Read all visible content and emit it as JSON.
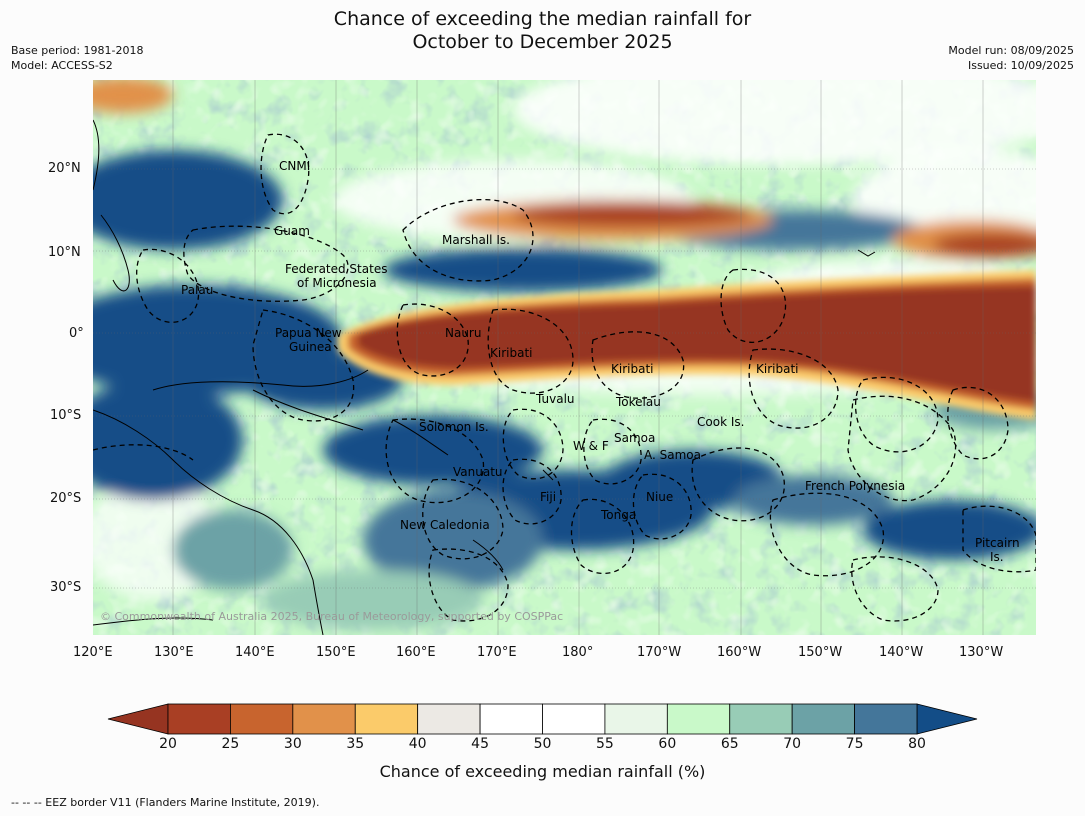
{
  "title_line1": "Chance of exceeding the median rainfall for",
  "title_line2": "October to December 2025",
  "meta_left": [
    "Base period: 1981-2018",
    "Model: ACCESS-S2"
  ],
  "meta_right": [
    "Model run: 08/09/2025",
    "Issued: 10/09/2025"
  ],
  "lon_labels": [
    "120°E",
    "130°E",
    "140°E",
    "150°E",
    "160°E",
    "170°E",
    "180°",
    "170°W",
    "160°W",
    "150°W",
    "140°W",
    "130°W"
  ],
  "lat_labels": [
    "20°N",
    "10°N",
    "0°",
    "10°S",
    "20°S",
    "30°S"
  ],
  "place_labels": [
    "CNMI",
    "Guam",
    "Marshall Is.",
    "Federated States",
    "of Micronesia",
    "Palau",
    "Papua New",
    "Guinea",
    "Nauru",
    "Kiribati",
    "Kiribati",
    "Kiribati",
    "Tuvalu",
    "Tokelau",
    "Cook Is.",
    "Solomon Is.",
    "Samoa",
    "W & F",
    "A. Samoa",
    "Vanuatu",
    "Fiji",
    "Niue",
    "Tonga",
    "French Polynesia",
    "New Caledonia",
    "Pitcairn",
    "Is."
  ],
  "copyright": "© Commonwealth of Australia 2025, Bureau of Meteorology, supported by COSPPac",
  "colorbar": {
    "ticks": [
      "20",
      "25",
      "30",
      "35",
      "40",
      "45",
      "50",
      "55",
      "60",
      "65",
      "70",
      "75",
      "80"
    ],
    "colors": [
      "#a93f24",
      "#c8642e",
      "#e1914a",
      "#fbcb6a",
      "#ece9e4",
      "#ffffff",
      "#ffffff",
      "#e9f6e8",
      "#c9f9c9",
      "#98ccb6",
      "#6ca2a6",
      "#44769a"
    ],
    "under_color": "#963421",
    "over_color": "#134d87",
    "label": "Chance of exceeding median rainfall (%)"
  },
  "footnote": "--  --  -- EEZ border V11 (Flanders Marine Institute, 2019)."
}
